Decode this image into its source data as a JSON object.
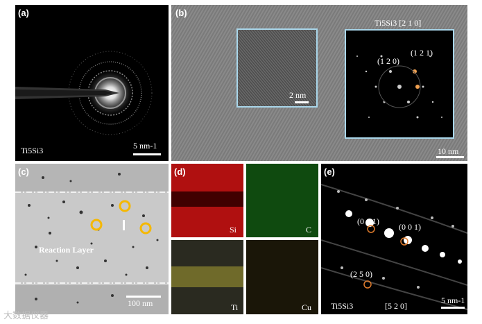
{
  "panels": {
    "a": {
      "label": "(a)",
      "material": "Ti5Si3",
      "scale": "5 nm-1"
    },
    "b": {
      "label": "(b)",
      "title": "Ti5Si3 [2 1 0]",
      "inset_scale": "2 nm",
      "scale": "10 nm",
      "spot1": "(1 2 0)",
      "spot2": "(1 2 1)"
    },
    "c": {
      "label": "(c)",
      "annotation": "Reaction Layer",
      "scale": "100 nm"
    },
    "d": {
      "label": "(d)",
      "maps": [
        {
          "element": "Si",
          "color": "#d01010"
        },
        {
          "element": "C",
          "color": "#1a9a1a"
        },
        {
          "element": "Ti",
          "color": "#c9c020"
        },
        {
          "element": "Cu",
          "color": "#b68a10"
        }
      ]
    },
    "e": {
      "label": "(e)",
      "material": "Ti5Si3",
      "zone": "[5 2 0]",
      "scale": "5 nm-1",
      "spot1": "(0 0 1)",
      "spot2": "(0 0 1)",
      "spot3": "(2 5 0)"
    }
  },
  "watermark": "大数据仪器"
}
